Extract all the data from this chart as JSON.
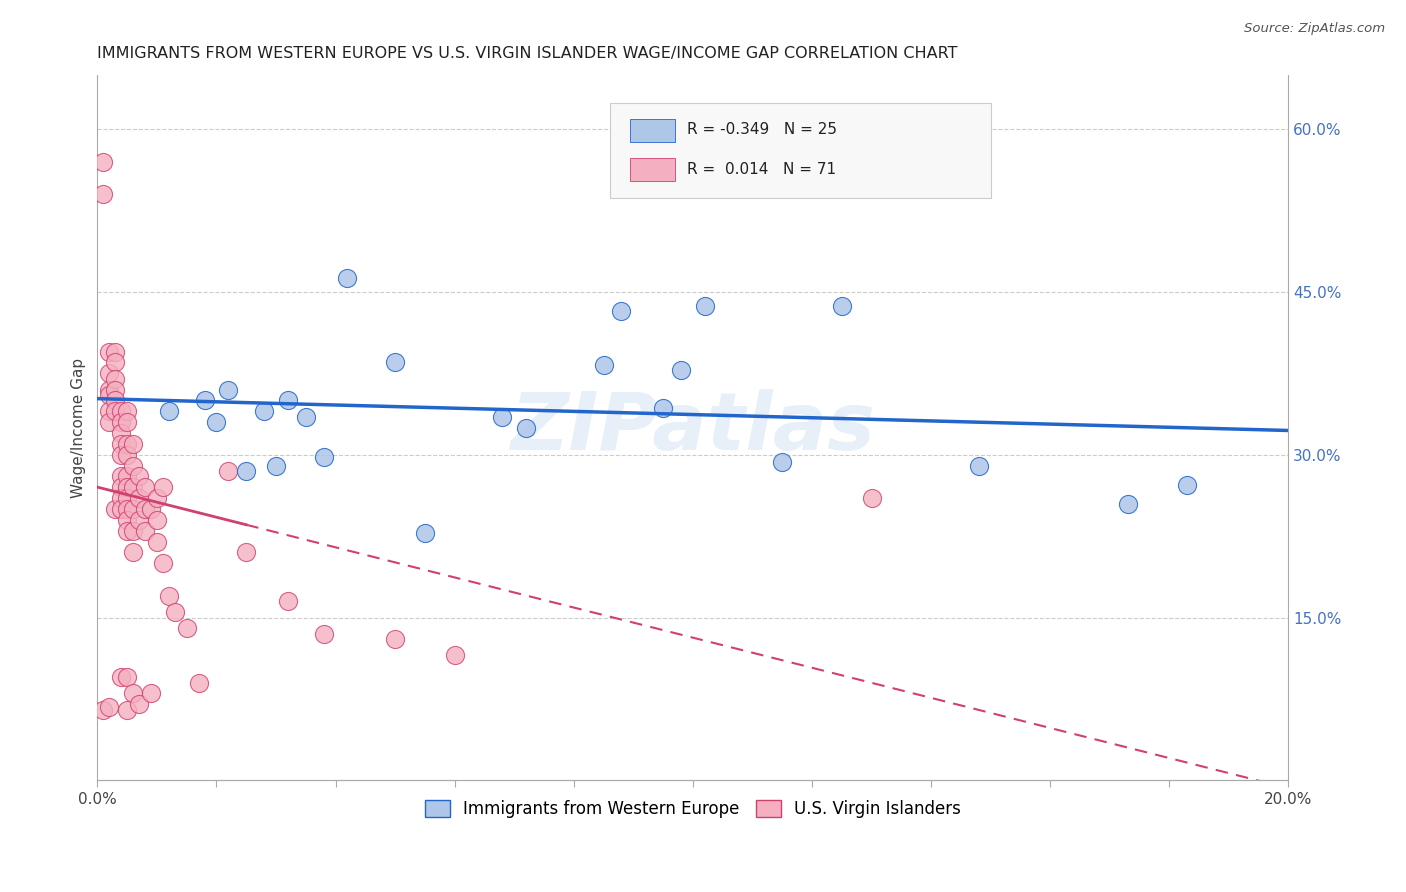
{
  "title": "IMMIGRANTS FROM WESTERN EUROPE VS U.S. VIRGIN ISLANDER WAGE/INCOME GAP CORRELATION CHART",
  "source": "Source: ZipAtlas.com",
  "ylabel": "Wage/Income Gap",
  "xlim": [
    0.0,
    0.2
  ],
  "ylim": [
    0.0,
    0.65
  ],
  "ytick_right": [
    0.15,
    0.3,
    0.45,
    0.6
  ],
  "ytick_right_labels": [
    "15.0%",
    "30.0%",
    "45.0%",
    "60.0%"
  ],
  "blue_R": -0.349,
  "blue_N": 25,
  "pink_R": 0.014,
  "pink_N": 71,
  "blue_color": "#aec6e8",
  "blue_line_color": "#2266cc",
  "pink_color": "#f4b0c0",
  "pink_line_color": "#d04070",
  "legend_label_blue": "Immigrants from Western Europe",
  "legend_label_pink": "U.S. Virgin Islanders",
  "watermark": "ZIPatlas",
  "blue_scatter_x": [
    0.012,
    0.018,
    0.02,
    0.022,
    0.025,
    0.028,
    0.03,
    0.032,
    0.035,
    0.038,
    0.042,
    0.05,
    0.055,
    0.068,
    0.072,
    0.085,
    0.088,
    0.095,
    0.098,
    0.102,
    0.115,
    0.125,
    0.148,
    0.173,
    0.183
  ],
  "blue_scatter_y": [
    0.34,
    0.35,
    0.33,
    0.36,
    0.285,
    0.34,
    0.29,
    0.35,
    0.335,
    0.298,
    0.463,
    0.385,
    0.228,
    0.335,
    0.325,
    0.383,
    0.432,
    0.343,
    0.378,
    0.437,
    0.293,
    0.437,
    0.29,
    0.255,
    0.272
  ],
  "pink_scatter_x": [
    0.001,
    0.001,
    0.001,
    0.002,
    0.002,
    0.002,
    0.002,
    0.002,
    0.002,
    0.002,
    0.003,
    0.003,
    0.003,
    0.003,
    0.003,
    0.003,
    0.003,
    0.004,
    0.004,
    0.004,
    0.004,
    0.004,
    0.004,
    0.004,
    0.004,
    0.004,
    0.004,
    0.005,
    0.005,
    0.005,
    0.005,
    0.005,
    0.005,
    0.005,
    0.005,
    0.005,
    0.005,
    0.005,
    0.005,
    0.006,
    0.006,
    0.006,
    0.006,
    0.006,
    0.006,
    0.006,
    0.007,
    0.007,
    0.007,
    0.007,
    0.008,
    0.008,
    0.008,
    0.009,
    0.009,
    0.01,
    0.01,
    0.01,
    0.011,
    0.011,
    0.012,
    0.013,
    0.015,
    0.017,
    0.022,
    0.025,
    0.032,
    0.038,
    0.05,
    0.06,
    0.13
  ],
  "pink_scatter_y": [
    0.57,
    0.54,
    0.065,
    0.395,
    0.375,
    0.36,
    0.355,
    0.34,
    0.33,
    0.068,
    0.395,
    0.385,
    0.37,
    0.36,
    0.35,
    0.34,
    0.25,
    0.34,
    0.33,
    0.32,
    0.31,
    0.3,
    0.28,
    0.27,
    0.26,
    0.25,
    0.095,
    0.34,
    0.33,
    0.31,
    0.3,
    0.28,
    0.27,
    0.26,
    0.25,
    0.24,
    0.23,
    0.095,
    0.065,
    0.31,
    0.29,
    0.27,
    0.25,
    0.23,
    0.21,
    0.08,
    0.28,
    0.26,
    0.24,
    0.07,
    0.27,
    0.25,
    0.23,
    0.25,
    0.08,
    0.26,
    0.24,
    0.22,
    0.27,
    0.2,
    0.17,
    0.155,
    0.14,
    0.09,
    0.285,
    0.21,
    0.165,
    0.135,
    0.13,
    0.115,
    0.26
  ],
  "background_color": "#ffffff",
  "grid_color": "#cccccc"
}
